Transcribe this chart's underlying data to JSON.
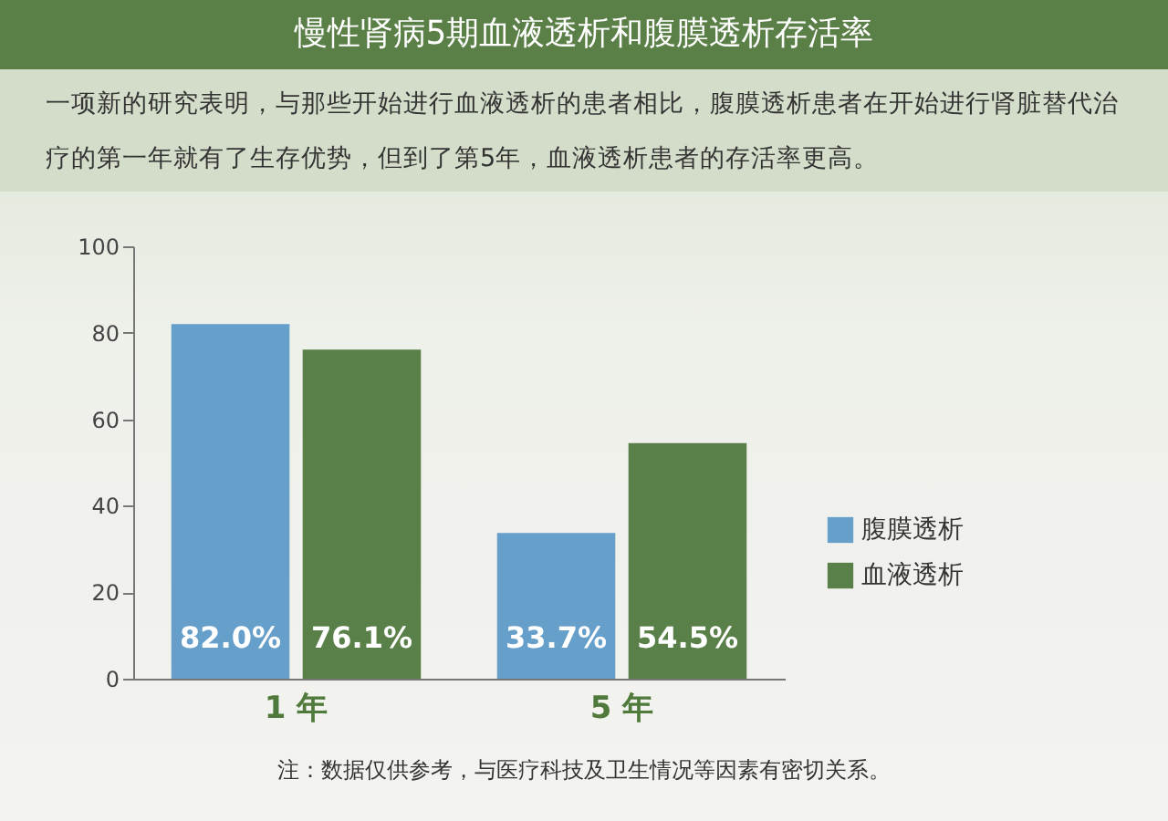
{
  "chart_data": {
    "type": "bar",
    "title": "慢性肾病5期血液透析和腹膜透析存活率",
    "subtitle": "一项新的研究表明，与那些开始进行血液透析的患者相比，腹膜透析患者在开始进行肾脏替代治疗的第一年就有了生存优势，但到了第5年，血液透析患者的存活率更高。",
    "annotations": [
      "注：数据仅供参考，与医疗科技及卫生情况等因素有密切关系。"
    ],
    "categories": [
      "1 年",
      "5 年"
    ],
    "series": [
      {
        "name": "腹膜透析",
        "color": "#679fcb",
        "values": [
          82.0,
          33.7
        ],
        "value_labels": [
          "82.0%",
          "33.7%"
        ]
      },
      {
        "name": "血液透析",
        "color": "#5a8049",
        "values": [
          76.1,
          54.5
        ],
        "value_labels": [
          "76.1%",
          "54.5%"
        ]
      }
    ],
    "ylim": [
      0,
      100
    ],
    "yticks": [
      0,
      20,
      40,
      60,
      80,
      100
    ],
    "grid": false,
    "legend": "right"
  }
}
